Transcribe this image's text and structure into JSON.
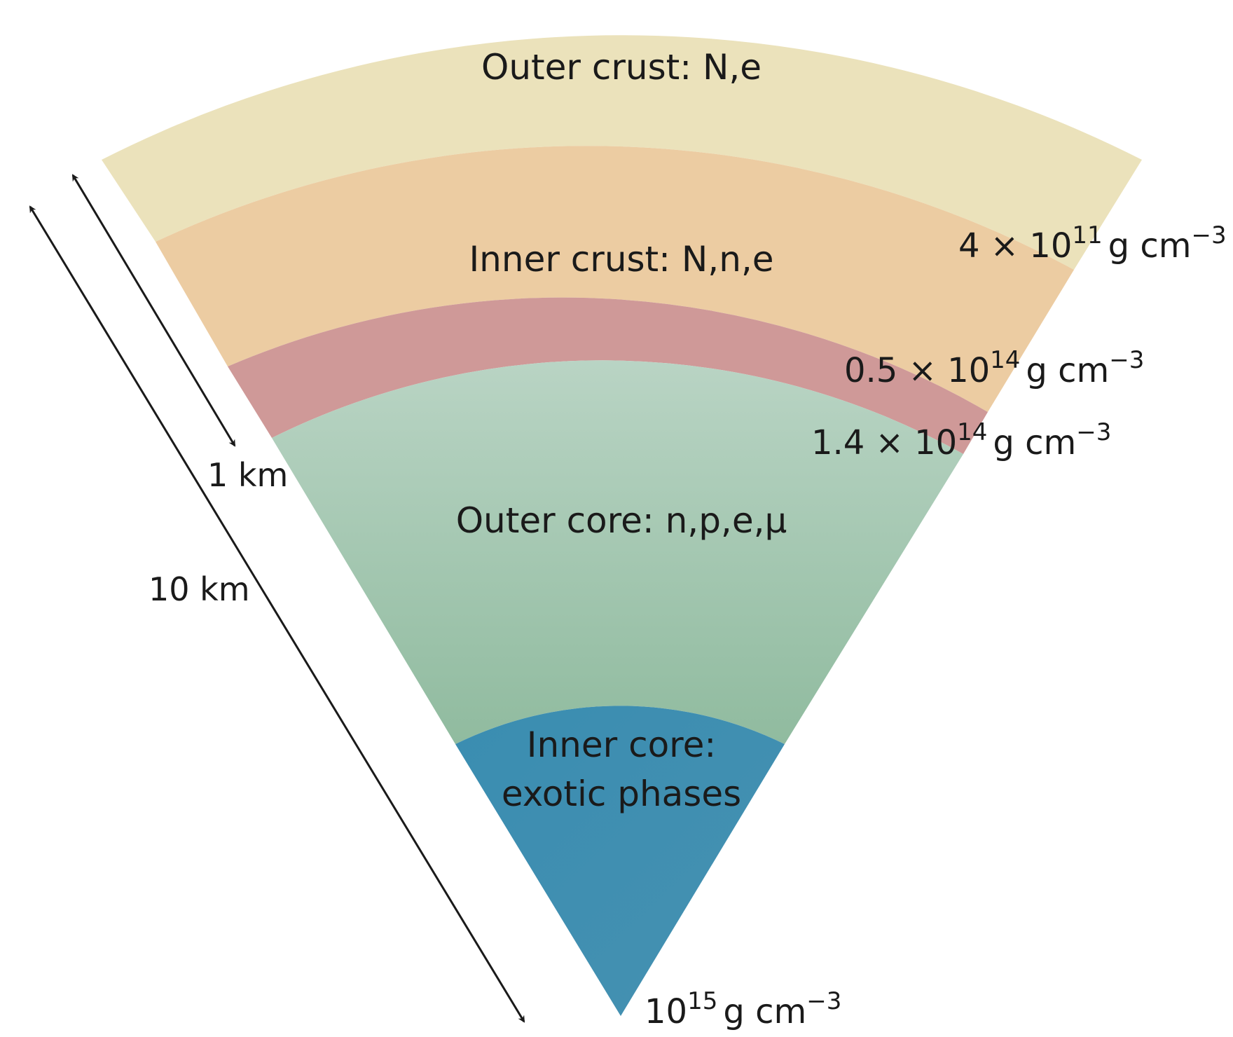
{
  "layers": [
    {
      "id": "outer-crust",
      "label": "Outer crust: N,e",
      "color_top": "#ebe2bb",
      "color_bottom": "#ebe2bb"
    },
    {
      "id": "inner-crust",
      "label": "Inner crust: N,n,e",
      "color_top": "#eccca2",
      "color_bottom": "#eccca2"
    },
    {
      "id": "crust-core-transition",
      "label": "",
      "color_top": "#cf9998",
      "color_bottom": "#cf9998"
    },
    {
      "id": "outer-core",
      "label": "Outer core: n,p,e,μ",
      "color_top": "#b9d4c4",
      "color_bottom": "#90bb9f"
    },
    {
      "id": "inner-core",
      "label_line1": "Inner core:",
      "label_line2": "exotic phases",
      "color_top": "#3a8db1",
      "color_bottom": "#4691b1"
    }
  ],
  "densities": [
    {
      "id": "density-1",
      "mantissa": "4 × 10",
      "exponent": "11",
      "unit": "g cm",
      "unit_exp": "−3"
    },
    {
      "id": "density-2",
      "mantissa": "0.5 × 10",
      "exponent": "14",
      "unit": "g cm",
      "unit_exp": "−3"
    },
    {
      "id": "density-3",
      "mantissa": "1.4 × 10",
      "exponent": "14",
      "unit": "g cm",
      "unit_exp": "−3"
    },
    {
      "id": "density-4",
      "mantissa": "10",
      "exponent": "15",
      "unit": "g cm",
      "unit_exp": "−3"
    }
  ],
  "scales": {
    "crust_thickness": "1 km",
    "radius": "10 km"
  },
  "colors": {
    "text": "#1a1a1a",
    "arrow": "#1a1a1a"
  }
}
